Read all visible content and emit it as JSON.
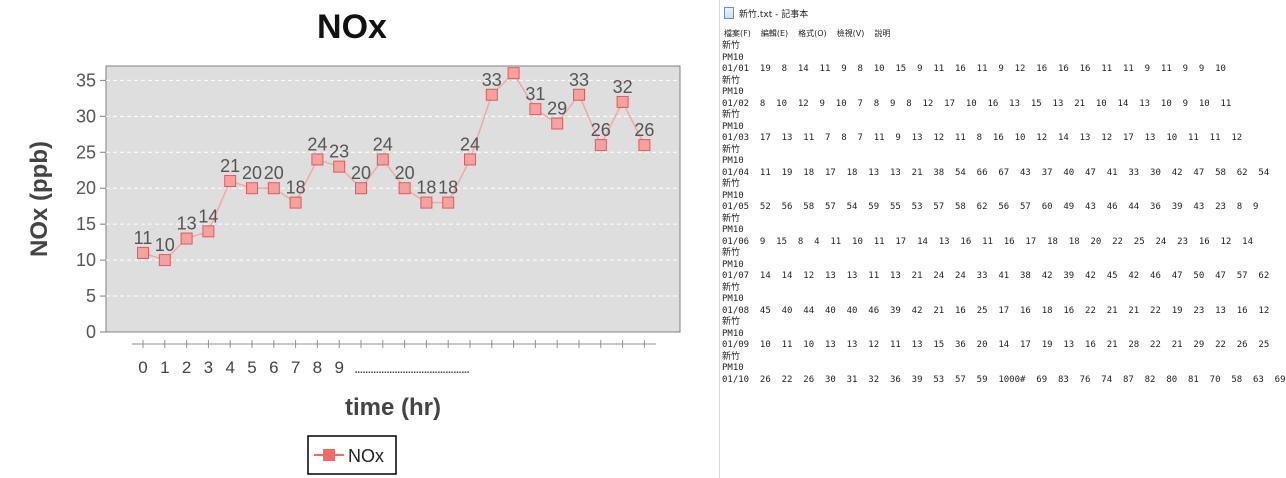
{
  "chart_data": {
    "type": "line",
    "title": "NOx",
    "xlabel": "time (hr)",
    "ylabel": "NOx (ppb)",
    "ylim": [
      0,
      37
    ],
    "yticks": [
      "0",
      "5",
      "10",
      "15",
      "20",
      "25",
      "30",
      "35"
    ],
    "xtick_labels": [
      "0",
      "1",
      "2",
      "3",
      "4",
      "5",
      "6",
      "7",
      "8",
      "9",
      "..........................................."
    ],
    "grid": true,
    "legend_position": "bottom",
    "x": [
      0,
      1,
      2,
      3,
      4,
      5,
      6,
      7,
      8,
      9,
      10,
      11,
      12,
      13,
      14,
      15,
      16,
      17,
      18,
      19,
      20,
      21,
      22,
      23
    ],
    "series": [
      {
        "name": "NOx",
        "color": "#f36a6a",
        "values": [
          11,
          10,
          13,
          14,
          21,
          20,
          20,
          18,
          24,
          23,
          20,
          24,
          20,
          18,
          18,
          24,
          33,
          36,
          31,
          29,
          33,
          26,
          32,
          26
        ],
        "labels": [
          "11",
          "10",
          "13",
          "14",
          "21",
          "20",
          "20",
          "18",
          "24",
          "23",
          "20",
          "24",
          "20",
          "18",
          "18",
          "24",
          "33",
          "",
          "31",
          "29",
          "33",
          "26",
          "32",
          "26"
        ]
      }
    ]
  },
  "notepad": {
    "title": "新竹.txt - 記事本",
    "menus": [
      "檔案(F)",
      "編輯(E)",
      "格式(O)",
      "檢視(V)",
      "說明"
    ],
    "lines": [
      "新竹",
      "PM10",
      "01/01  19  8  14  11  9  8  10  15  9  11  16  11  9  12  16  16  16  11  11  9  11  9  9  10",
      "新竹",
      "PM10",
      "01/02  8  10  12  9  10  7  8  9  8  12  17  10  16  13  15  13  21  10  14  13  10  9  10  11",
      "新竹",
      "PM10",
      "01/03  17  13  11  7  8  7  11  9  13  12  11  8  16  10  12  14  13  12  17  13  10  11  11  12",
      "新竹",
      "PM10",
      "01/04  11  19  18  17  18  13  13  21  38  54  66  67  43  37  40  47  41  33  30  42  47  58  62  54",
      "新竹",
      "PM10",
      "01/05  52  56  58  57  54  59  55  53  57  58  62  56  57  60  49  43  46  44  36  39  43  23  8  9",
      "新竹",
      "PM10",
      "01/06  9  15  8  4  11  10  11  17  14  13  16  11  16  17  18  18  20  22  25  24  23  16  12  14",
      "新竹",
      "PM10",
      "01/07  14  14  12  13  13  11  13  21  24  24  33  41  38  42  39  42  45  42  46  47  50  47  57  62",
      "新竹",
      "PM10",
      "01/08  45  40  44  40  40  46  39  42  21  16  25  17  16  18  16  22  21  21  22  19  23  13  16  12",
      "新竹",
      "PM10",
      "01/09  10  11  10  13  13  12  11  13  15  36  20  14  17  19  13  16  21  28  22  21  29  22  26  25",
      "新竹",
      "PM10",
      "01/10  26  22  26  30  31  32  36  39  53  57  59  1000#  69  83  76  74  87  82  80  81  70  58  63  69"
    ]
  }
}
